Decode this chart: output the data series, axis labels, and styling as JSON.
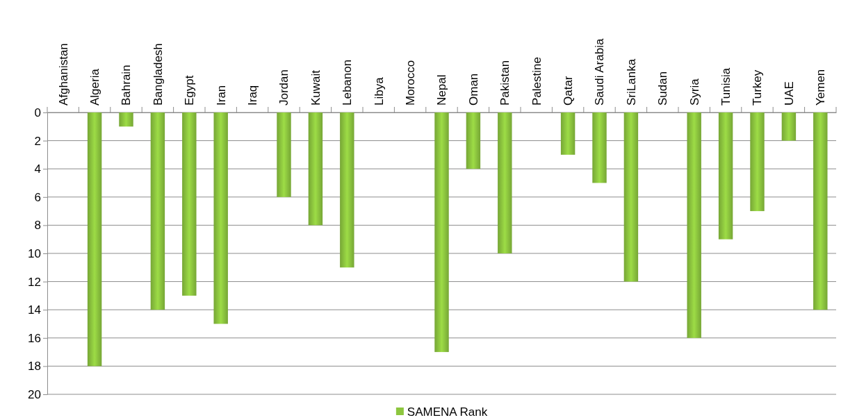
{
  "chart_data": {
    "type": "bar",
    "categories": [
      "Afghanistan",
      "Algeria",
      "Bahrain",
      "Bangladesh",
      "Egypt",
      "Iran",
      "Iraq",
      "Jordan",
      "Kuwait",
      "Lebanon",
      "Libya",
      "Morocco",
      "Nepal",
      "Oman",
      "Pakistan",
      "Palestine",
      "Qatar",
      "Saudi Arabia",
      "SriLanka",
      "Sudan",
      "Syria",
      "Tunisia",
      "Turkey",
      "UAE",
      "Yemen"
    ],
    "series": [
      {
        "name": "SAMENA Rank",
        "color": "#8dc63f",
        "values": [
          null,
          18,
          1,
          14,
          13,
          15,
          null,
          6,
          8,
          11,
          null,
          null,
          17,
          4,
          10,
          null,
          3,
          5,
          12,
          null,
          16,
          9,
          7,
          2,
          14
        ]
      }
    ],
    "ylim": [
      20,
      0
    ],
    "yticks": [
      0,
      2,
      4,
      6,
      8,
      10,
      12,
      14,
      16,
      18,
      20
    ],
    "grid": "y",
    "legend": "bottom"
  }
}
